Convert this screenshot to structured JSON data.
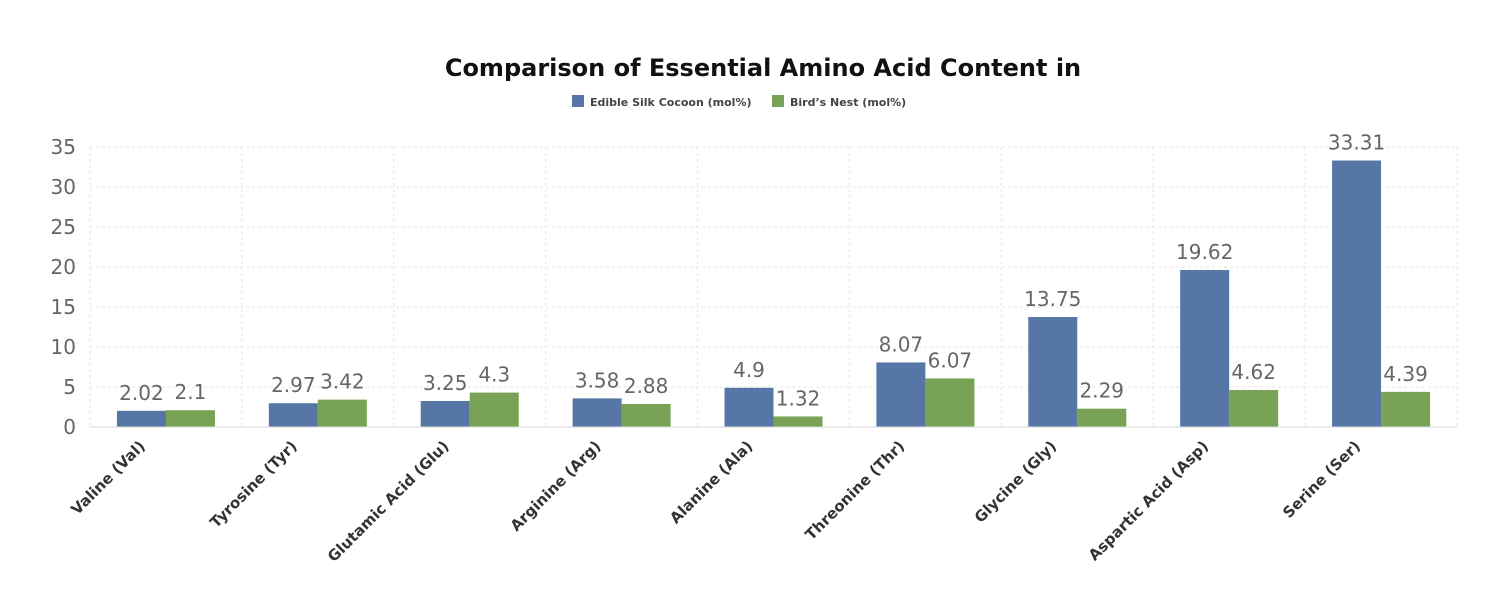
{
  "chart_data": {
    "type": "bar",
    "title": "Comparison of Essential Amino Acid Content in",
    "xlabel": "",
    "ylabel": "",
    "ylim": [
      0,
      35
    ],
    "yticks": [
      0,
      5,
      10,
      15,
      20,
      25,
      30,
      35
    ],
    "grid": true,
    "legend_position": "top-center",
    "categories": [
      "Valine (Val)",
      "Tyrosine (Tyr)",
      "Glutamic Acid (Glu)",
      "Arginine (Arg)",
      "Alanine (Ala)",
      "Threonine (Thr)",
      "Glycine (Gly)",
      "Aspartic Acid (Asp)",
      "Serine (Ser)"
    ],
    "series": [
      {
        "name": "Edible Silk Cocoon (mol%)",
        "color": "#5677a6",
        "values": [
          2.02,
          2.97,
          3.25,
          3.58,
          4.9,
          8.07,
          13.75,
          19.62,
          33.31
        ]
      },
      {
        "name": "Bird’s Nest (mol%)",
        "color": "#78a255",
        "values": [
          2.1,
          3.42,
          4.3,
          2.88,
          1.32,
          6.07,
          2.29,
          4.62,
          4.39
        ]
      }
    ]
  }
}
